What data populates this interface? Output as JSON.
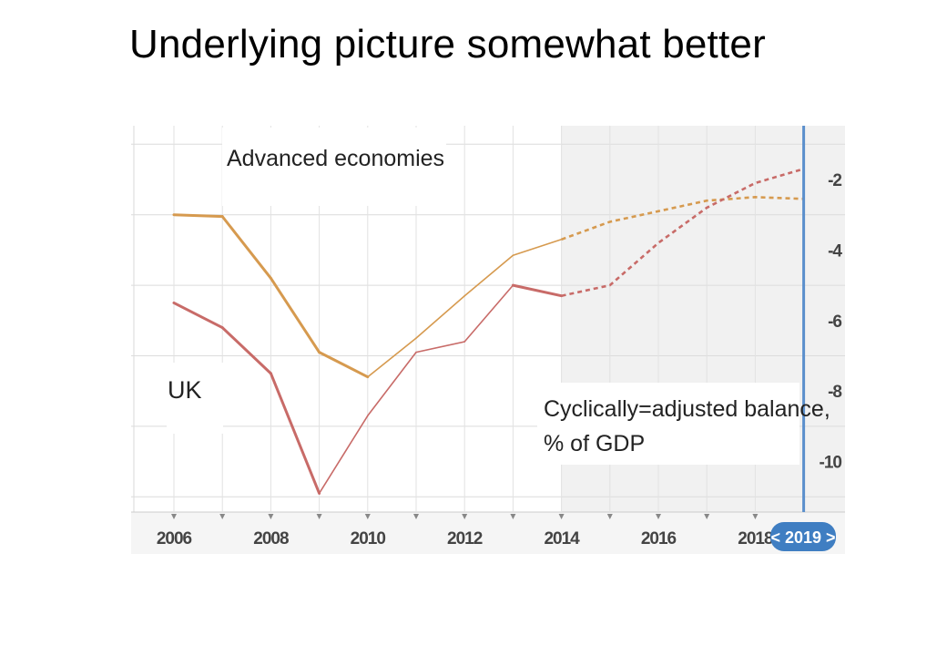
{
  "slide": {
    "title": "Underlying picture somewhat better"
  },
  "chart_data": {
    "type": "line",
    "x": [
      2006,
      2007,
      2008,
      2009,
      2010,
      2011,
      2012,
      2013,
      2014,
      2015,
      2016,
      2017,
      2018,
      2019
    ],
    "forecast_from": 2014,
    "series": [
      {
        "name": "Advanced economies",
        "color": "#d69a4f",
        "values": [
          -3.0,
          -3.05,
          -4.8,
          -6.9,
          -7.6,
          -6.5,
          -5.3,
          -4.15,
          -3.7,
          -3.2,
          -2.9,
          -2.6,
          -2.5,
          -2.55
        ]
      },
      {
        "name": "UK",
        "color": "#c86b68",
        "values": [
          -5.5,
          -6.2,
          -7.5,
          -10.9,
          -8.7,
          -6.9,
          -6.6,
          -5.0,
          -5.3,
          -5.0,
          -3.8,
          -2.8,
          -2.1,
          -1.7
        ]
      }
    ],
    "annotation": [
      "Cyclically=adjusted balance,",
      "% of GDP"
    ],
    "y_ticks": [
      "-2",
      "-4",
      "-6",
      "-8",
      "-10"
    ],
    "x_ticks": [
      "2006",
      "2008",
      "2010",
      "2012",
      "2014",
      "2016",
      "2018"
    ],
    "current_year_label": "< 2019 >",
    "ylim": [
      -11.5,
      -0.5
    ],
    "xlim": [
      2005,
      2019.9
    ],
    "grid": true
  }
}
